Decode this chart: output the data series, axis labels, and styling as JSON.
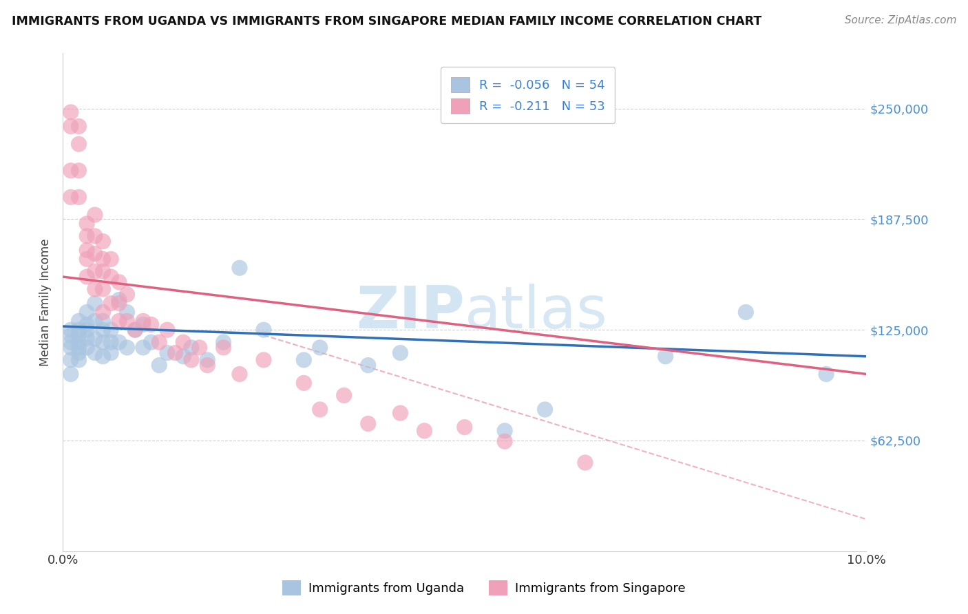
{
  "title": "IMMIGRANTS FROM UGANDA VS IMMIGRANTS FROM SINGAPORE MEDIAN FAMILY INCOME CORRELATION CHART",
  "source": "Source: ZipAtlas.com",
  "ylabel": "Median Family Income",
  "xlim": [
    0.0,
    0.1
  ],
  "ylim": [
    0,
    281250
  ],
  "yticks": [
    0,
    62500,
    125000,
    187500,
    250000
  ],
  "ytick_labels": [
    "",
    "$62,500",
    "$125,000",
    "$187,500",
    "$250,000"
  ],
  "xticks": [
    0.0,
    0.02,
    0.04,
    0.06,
    0.08,
    0.1
  ],
  "xtick_labels": [
    "0.0%",
    "",
    "",
    "",
    "",
    "10.0%"
  ],
  "legend_labels": [
    "Immigrants from Uganda",
    "Immigrants from Singapore"
  ],
  "legend_R": [
    -0.056,
    -0.211
  ],
  "legend_N": [
    54,
    53
  ],
  "blue_color": "#a8c4e0",
  "pink_color": "#f0a0b8",
  "blue_line_color": "#3070b8",
  "pink_line_color": "#e06080",
  "dash_line_color": "#f0b0c0",
  "watermark_color": "#cce0f0",
  "blue_line_x0": 0.0,
  "blue_line_y0": 127000,
  "blue_line_x1": 0.1,
  "blue_line_y1": 110000,
  "pink_line_x0": 0.0,
  "pink_line_y0": 155000,
  "pink_line_x1": 0.1,
  "pink_line_y1": 100000,
  "dash_line_x0": 0.025,
  "dash_line_y0": 122000,
  "dash_line_x1": 0.1,
  "dash_line_y1": 18000,
  "blue_scatter_x": [
    0.001,
    0.001,
    0.001,
    0.001,
    0.001,
    0.001,
    0.002,
    0.002,
    0.002,
    0.002,
    0.002,
    0.002,
    0.002,
    0.003,
    0.003,
    0.003,
    0.003,
    0.003,
    0.004,
    0.004,
    0.004,
    0.004,
    0.005,
    0.005,
    0.005,
    0.005,
    0.006,
    0.006,
    0.006,
    0.007,
    0.007,
    0.008,
    0.008,
    0.009,
    0.01,
    0.01,
    0.011,
    0.012,
    0.013,
    0.015,
    0.016,
    0.018,
    0.02,
    0.022,
    0.025,
    0.03,
    0.032,
    0.038,
    0.042,
    0.055,
    0.06,
    0.075,
    0.085,
    0.095
  ],
  "blue_scatter_y": [
    125000,
    122000,
    118000,
    115000,
    108000,
    100000,
    130000,
    125000,
    122000,
    118000,
    115000,
    112000,
    108000,
    135000,
    128000,
    125000,
    120000,
    115000,
    140000,
    130000,
    120000,
    112000,
    130000,
    125000,
    118000,
    110000,
    125000,
    118000,
    112000,
    142000,
    118000,
    135000,
    115000,
    125000,
    128000,
    115000,
    118000,
    105000,
    112000,
    110000,
    115000,
    108000,
    118000,
    160000,
    125000,
    108000,
    115000,
    105000,
    112000,
    68000,
    80000,
    110000,
    135000,
    100000
  ],
  "pink_scatter_x": [
    0.001,
    0.001,
    0.001,
    0.001,
    0.002,
    0.002,
    0.002,
    0.002,
    0.003,
    0.003,
    0.003,
    0.003,
    0.003,
    0.004,
    0.004,
    0.004,
    0.004,
    0.004,
    0.005,
    0.005,
    0.005,
    0.005,
    0.005,
    0.006,
    0.006,
    0.006,
    0.007,
    0.007,
    0.007,
    0.008,
    0.008,
    0.009,
    0.01,
    0.011,
    0.012,
    0.013,
    0.014,
    0.015,
    0.016,
    0.017,
    0.018,
    0.02,
    0.022,
    0.025,
    0.03,
    0.032,
    0.035,
    0.038,
    0.042,
    0.045,
    0.05,
    0.055,
    0.065
  ],
  "pink_scatter_y": [
    248000,
    240000,
    215000,
    200000,
    240000,
    230000,
    215000,
    200000,
    185000,
    178000,
    170000,
    165000,
    155000,
    190000,
    178000,
    168000,
    158000,
    148000,
    175000,
    165000,
    158000,
    148000,
    135000,
    165000,
    155000,
    140000,
    152000,
    140000,
    130000,
    145000,
    130000,
    125000,
    130000,
    128000,
    118000,
    125000,
    112000,
    118000,
    108000,
    115000,
    105000,
    115000,
    100000,
    108000,
    95000,
    80000,
    88000,
    72000,
    78000,
    68000,
    70000,
    62000,
    50000
  ]
}
